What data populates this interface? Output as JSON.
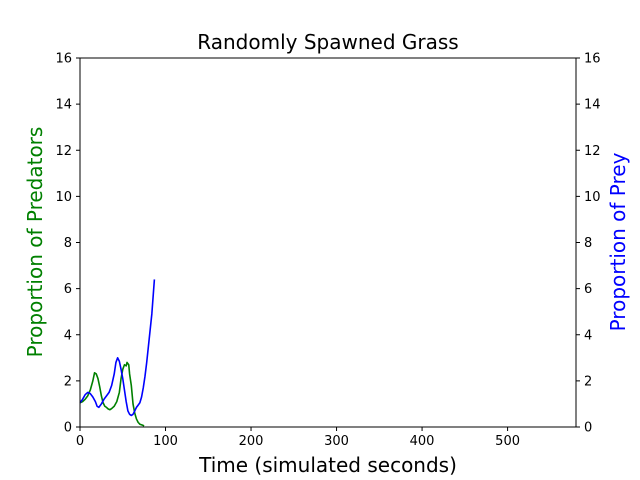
{
  "chart_data": {
    "type": "line",
    "title": "Randomly Spawned Grass",
    "xlabel": "Time (simulated seconds)",
    "ylabel_left": "Proportion of Predators",
    "ylabel_right": "Proportion of Prey",
    "xlim": [
      0,
      580
    ],
    "ylim": [
      0,
      16
    ],
    "x_ticks": [
      0,
      100,
      200,
      300,
      400,
      500
    ],
    "y_ticks": [
      0,
      2,
      4,
      6,
      8,
      10,
      12,
      14,
      16
    ],
    "grid": false,
    "colors": {
      "predators": "#008000",
      "prey": "#0000ff"
    },
    "series": [
      {
        "name": "Proportion of Predators",
        "axis": "left",
        "color": "#008000",
        "x": [
          0,
          3,
          6,
          9,
          12,
          15,
          17,
          19,
          21,
          23,
          25,
          27,
          29,
          31,
          33,
          35,
          37,
          40,
          43,
          46,
          48,
          50,
          52,
          54,
          55,
          57,
          58,
          60,
          62,
          64,
          66,
          68,
          70,
          73,
          75
        ],
        "y": [
          1.05,
          1.1,
          1.2,
          1.35,
          1.6,
          2.0,
          2.35,
          2.3,
          2.1,
          1.75,
          1.35,
          1.05,
          0.9,
          0.85,
          0.78,
          0.75,
          0.8,
          0.9,
          1.1,
          1.5,
          2.1,
          2.5,
          2.7,
          2.65,
          2.8,
          2.7,
          2.3,
          1.8,
          1.0,
          0.6,
          0.35,
          0.2,
          0.12,
          0.08,
          0.05
        ]
      },
      {
        "name": "Proportion of Prey",
        "axis": "right",
        "color": "#0000ff",
        "x": [
          0,
          3,
          6,
          9,
          12,
          15,
          18,
          20,
          22,
          25,
          28,
          31,
          34,
          37,
          40,
          42,
          44,
          46,
          48,
          50,
          52,
          54,
          56,
          58,
          60,
          62,
          64,
          66,
          68,
          70,
          72,
          74,
          76,
          78,
          80,
          82,
          84,
          86,
          87
        ],
        "y": [
          1.05,
          1.2,
          1.4,
          1.5,
          1.45,
          1.3,
          1.1,
          0.9,
          0.85,
          1.0,
          1.2,
          1.35,
          1.5,
          1.8,
          2.3,
          2.8,
          3.0,
          2.85,
          2.5,
          2.1,
          1.6,
          1.1,
          0.7,
          0.55,
          0.5,
          0.55,
          0.7,
          0.85,
          0.95,
          1.05,
          1.3,
          1.7,
          2.2,
          2.8,
          3.5,
          4.2,
          4.9,
          5.9,
          6.4
        ]
      }
    ]
  }
}
